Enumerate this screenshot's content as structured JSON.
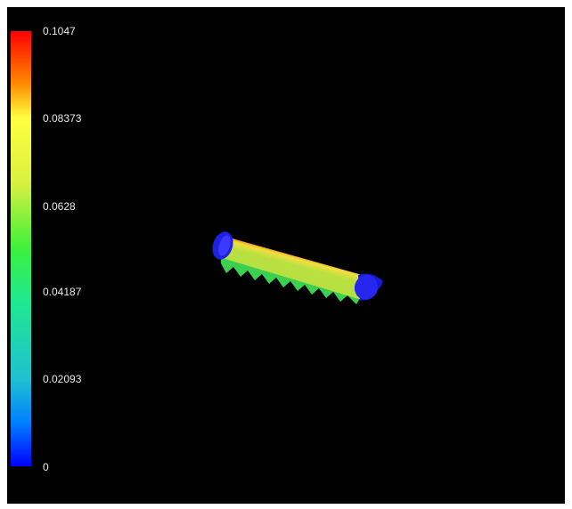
{
  "viewer": {
    "legend": {
      "ticks": [
        "0.1047",
        "0.08373",
        "0.0628",
        "0.04187",
        "0.02093",
        "0"
      ],
      "colors": [
        "#ff0000",
        "#ff8a00",
        "#ffff40",
        "#3cf03c",
        "#20c0d0",
        "#0000ff"
      ]
    },
    "background_color": "#000000",
    "model_icon": "cylinder-mesh"
  }
}
